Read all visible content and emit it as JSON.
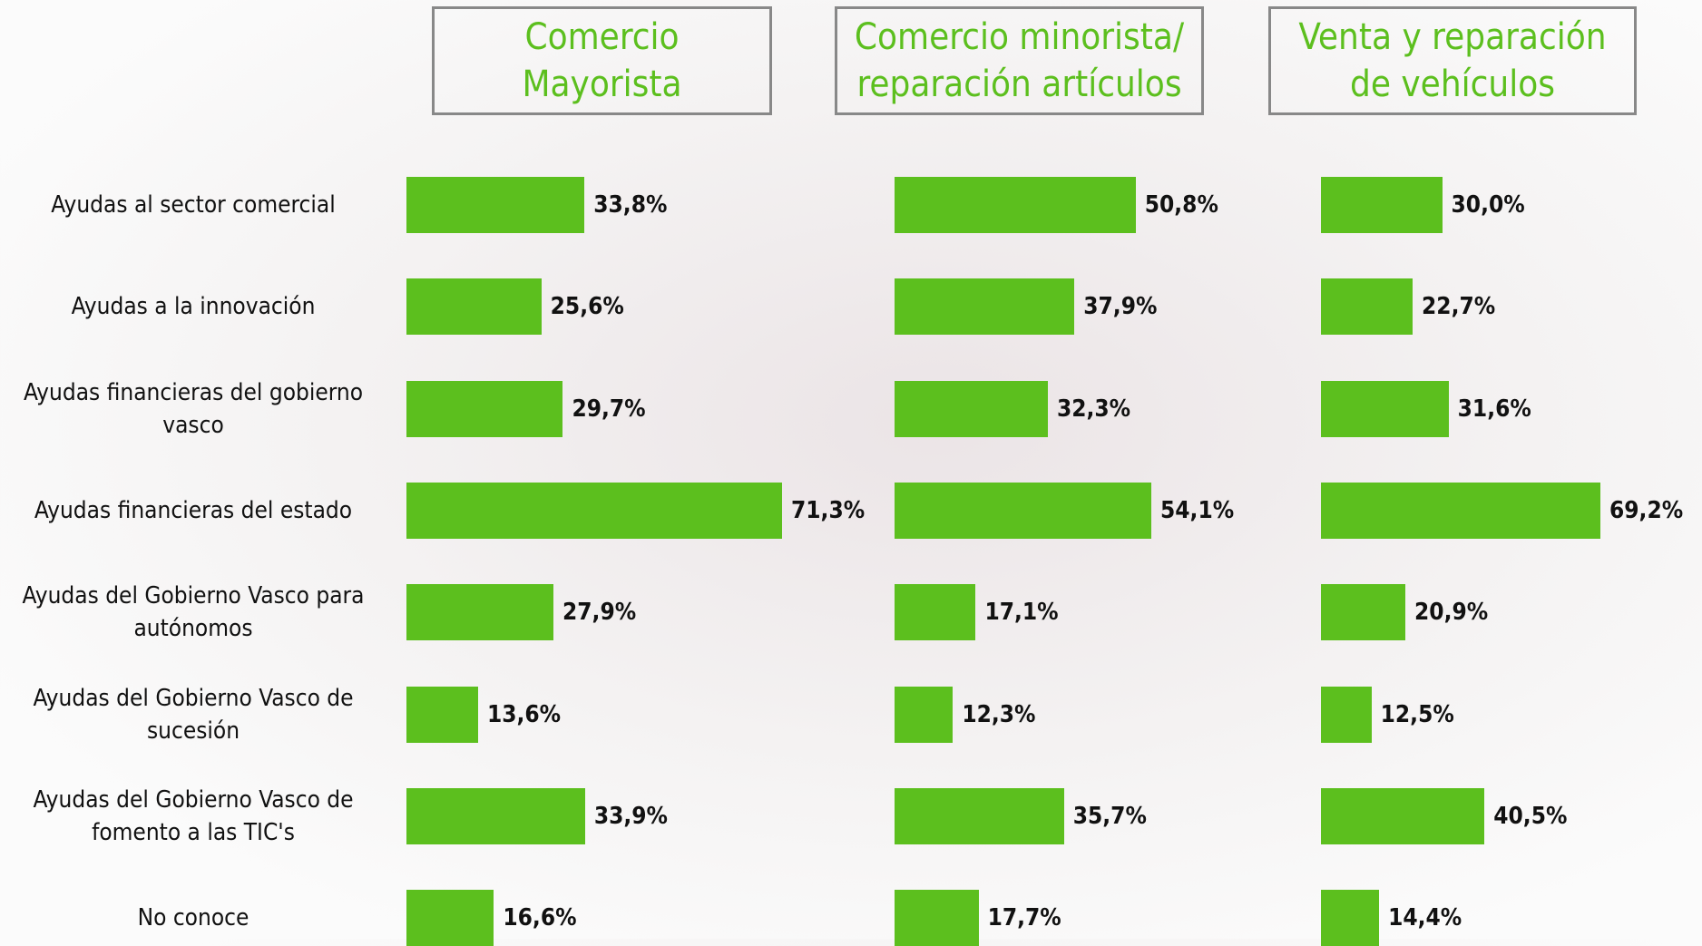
{
  "chart_data": {
    "type": "bar",
    "orientation": "horizontal",
    "categories": [
      "Ayudas al sector comercial",
      "Ayudas a la innovación",
      "Ayudas financieras del gobierno vasco",
      "Ayudas financieras del estado",
      "Ayudas del Gobierno Vasco para autónomos",
      "Ayudas del Gobierno Vasco de sucesión",
      "Ayudas del Gobierno Vasco de fomento a las TIC's",
      "No conoce"
    ],
    "series": [
      {
        "name": "Comercio Mayorista",
        "color": "#5cbf1e",
        "values": [
          33.8,
          25.6,
          29.7,
          71.3,
          27.9,
          13.6,
          33.9,
          16.6
        ],
        "value_labels": [
          "33,8%",
          "25,6%",
          "29,7%",
          "71,3%",
          "27,9%",
          "13,6%",
          "33,9%",
          "16,6%"
        ]
      },
      {
        "name": "Comercio minorista/ reparación artículos",
        "color": "#5cbf1e",
        "values": [
          50.8,
          37.9,
          32.3,
          54.1,
          17.1,
          12.3,
          35.7,
          17.7
        ],
        "value_labels": [
          "50,8%",
          "37,9%",
          "32,3%",
          "54,1%",
          "17,1%",
          "12,3%",
          "35,7%",
          "17,7%"
        ]
      },
      {
        "name": "Venta y reparación de vehículos",
        "color": "#5cbf1e",
        "values": [
          30.0,
          22.7,
          31.6,
          69.2,
          20.9,
          12.5,
          40.5,
          14.4
        ],
        "value_labels": [
          "30,0%",
          "22,7%",
          "31,6%",
          "69,2%",
          "20,9%",
          "12,5%",
          "40,5%",
          "14,4%"
        ]
      }
    ]
  }
}
